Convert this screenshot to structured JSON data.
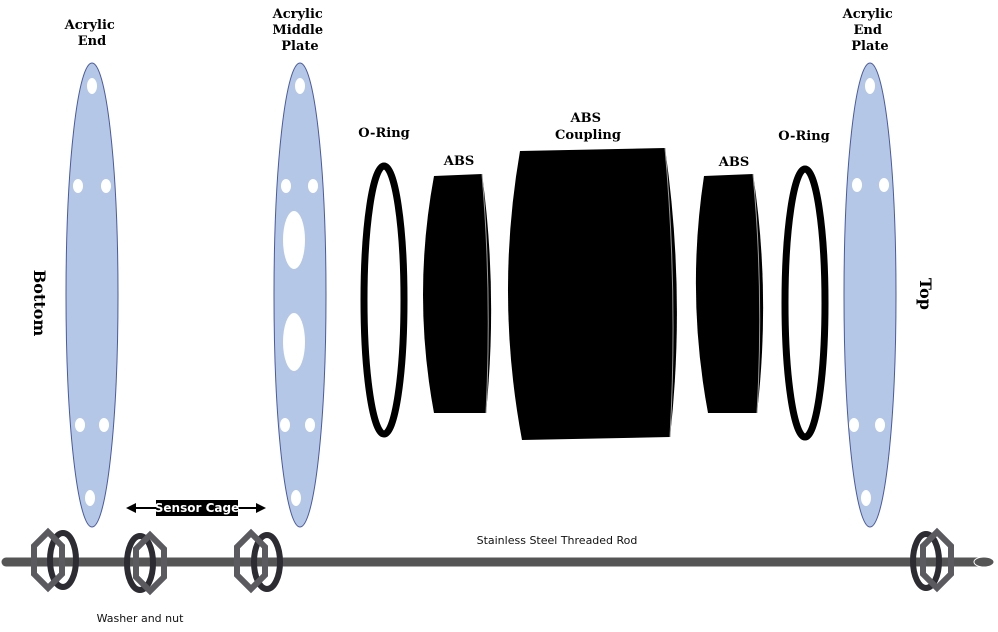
{
  "labels": {
    "acrylic_end_left": [
      "Acrylic",
      "End"
    ],
    "acrylic_middle": [
      "Acrylic",
      "Middle",
      "Plate"
    ],
    "acrylic_end_right": [
      "Acrylic",
      "End",
      "Plate"
    ],
    "oring_left": "O-Ring",
    "abs_left": "ABS",
    "abs_coupling": [
      "ABS",
      "Coupling"
    ],
    "abs_right": "ABS",
    "oring_right": "O-Ring",
    "bottom": "Bottom",
    "top": "Top",
    "sensor_cage": "Sensor Cage",
    "rod": "Stainless Steel Threaded Rod",
    "washer_nut": "Washer and nut"
  },
  "colors": {
    "plate_fill": "#b4c7e7",
    "plate_stroke": "#4a5aa0",
    "rod": "#555555",
    "nut": "#5a5a5f",
    "washer": "#2c2c32",
    "parts": "#000000"
  }
}
